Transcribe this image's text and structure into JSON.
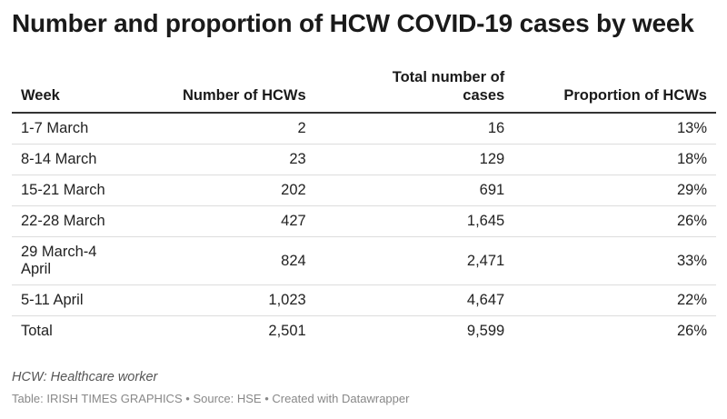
{
  "chart_data": {
    "type": "table",
    "title": "Number and proportion of HCW COVID-19 cases by week",
    "columns": [
      "Week",
      "Number of HCWs",
      "Total number of cases",
      "Proportion of HCWs"
    ],
    "rows": [
      {
        "week": "1-7 March",
        "hcws": "2",
        "total": "16",
        "proportion": "13%"
      },
      {
        "week": "8-14 March",
        "hcws": "23",
        "total": "129",
        "proportion": "18%"
      },
      {
        "week": "15-21 March",
        "hcws": "202",
        "total": "691",
        "proportion": "29%"
      },
      {
        "week": "22-28 March",
        "hcws": "427",
        "total": "1,645",
        "proportion": "26%"
      },
      {
        "week": "29 March-4 April",
        "hcws": "824",
        "total": "2,471",
        "proportion": "33%"
      },
      {
        "week": "5-11 April",
        "hcws": "1,023",
        "total": "4,647",
        "proportion": "22%"
      },
      {
        "week": "Total",
        "hcws": "2,501",
        "total": "9,599",
        "proportion": "26%"
      }
    ],
    "notes": "HCW: Healthcare worker",
    "footer": {
      "label": "Table:",
      "source": "IRISH TIMES GRAPHICS",
      "separator": "•",
      "source_label": "Source:",
      "source_name": "HSE",
      "credit": "Created with Datawrapper"
    }
  },
  "colors": {
    "title": "#1a1a1a",
    "text": "#222222",
    "header_rule": "#333333",
    "row_rule": "#dddddd",
    "notes": "#555555",
    "footer": "#888888"
  }
}
